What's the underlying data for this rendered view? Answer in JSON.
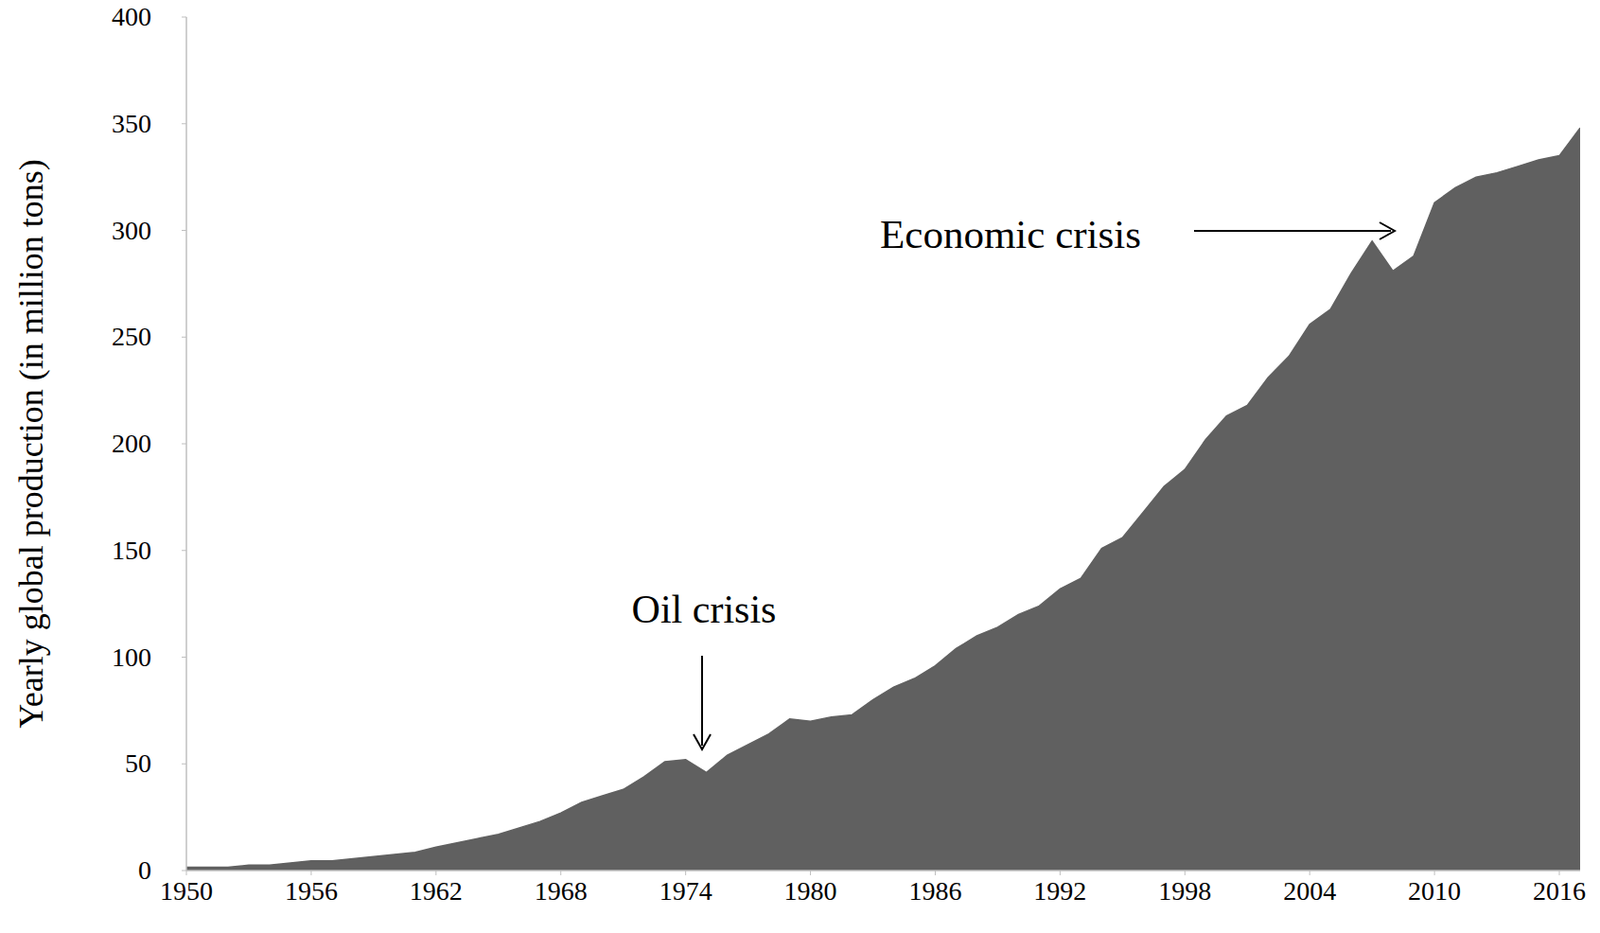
{
  "chart_data": {
    "type": "area",
    "y_label": "Yearly global production (in million tons)",
    "annotations": [
      "Oil crisis",
      "Economic crisis"
    ],
    "x": [
      1950,
      1951,
      1952,
      1953,
      1954,
      1955,
      1956,
      1957,
      1958,
      1959,
      1960,
      1961,
      1962,
      1963,
      1964,
      1965,
      1966,
      1967,
      1968,
      1969,
      1970,
      1971,
      1972,
      1973,
      1974,
      1975,
      1976,
      1977,
      1978,
      1979,
      1980,
      1981,
      1982,
      1983,
      1984,
      1985,
      1986,
      1987,
      1988,
      1989,
      1990,
      1991,
      1992,
      1993,
      1994,
      1995,
      1996,
      1997,
      1998,
      1999,
      2000,
      2001,
      2002,
      2003,
      2004,
      2005,
      2006,
      2007,
      2008,
      2009,
      2010,
      2011,
      2012,
      2013,
      2014,
      2015,
      2016,
      2017
    ],
    "values": [
      1.5,
      1.5,
      1.5,
      2.5,
      2.5,
      3.5,
      4.5,
      4.5,
      5.5,
      6.5,
      7.5,
      8.5,
      11,
      13,
      15,
      17,
      20,
      23,
      27,
      32,
      35,
      38,
      44,
      51,
      52,
      46,
      54,
      59,
      64,
      71,
      70,
      72,
      73,
      80,
      86,
      90,
      96,
      104,
      110,
      114,
      120,
      124,
      132,
      137,
      151,
      156,
      168,
      180,
      188,
      202,
      213,
      218,
      231,
      241,
      256,
      263,
      280,
      295,
      281,
      288,
      313,
      320,
      325,
      327,
      330,
      333,
      335,
      348
    ],
    "color": "#606060",
    "xlim": [
      1950,
      2017
    ],
    "xticks": [
      1950,
      1956,
      1962,
      1968,
      1974,
      1980,
      1986,
      1992,
      1998,
      2004,
      2010,
      2016
    ],
    "ylim": [
      0,
      400
    ],
    "yticks": [
      0,
      50,
      100,
      150,
      200,
      250,
      300,
      350,
      400
    ],
    "grid": false
  }
}
